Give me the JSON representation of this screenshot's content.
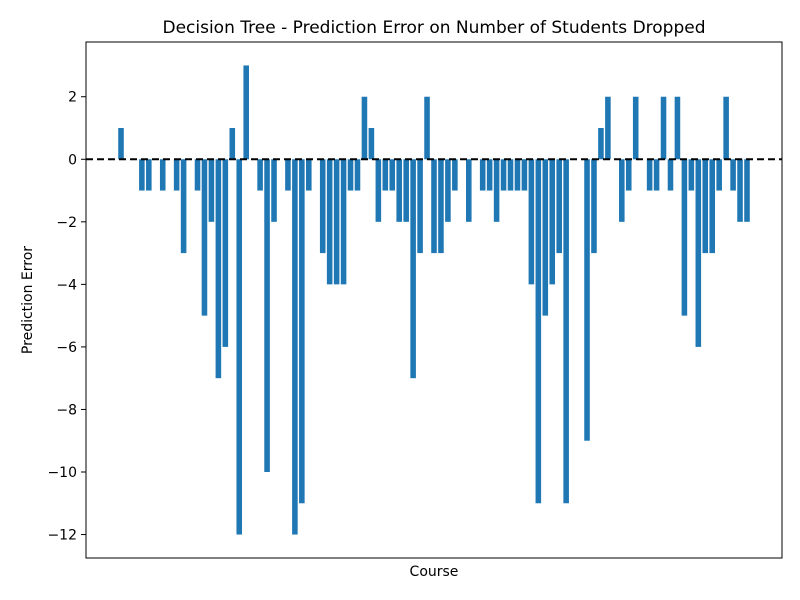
{
  "chart_data": {
    "type": "bar",
    "title": "Decision Tree - Prediction Error on Number of Students Dropped",
    "xlabel": "Course",
    "ylabel": "Prediction Error",
    "ylim": [
      -12.75,
      3.75
    ],
    "yticks": [
      2,
      0,
      -2,
      -4,
      -6,
      -8,
      -10,
      -12
    ],
    "ytick_labels": [
      "2",
      "0",
      "−2",
      "−4",
      "−6",
      "−8",
      "−10",
      "−12"
    ],
    "reference_line": {
      "y": 0,
      "style": "dashed",
      "color": "#000000"
    },
    "bar_color": "#1f77b4",
    "values": [
      1,
      0,
      0,
      -1,
      -1,
      0,
      -1,
      0,
      -1,
      -3,
      0,
      -1,
      -5,
      -2,
      -7,
      -6,
      1,
      -12,
      3,
      0,
      -1,
      -10,
      -2,
      0,
      -1,
      -12,
      -11,
      -1,
      0,
      -3,
      -4,
      -4,
      -4,
      -1,
      -1,
      2,
      1,
      -2,
      -1,
      -1,
      -2,
      -2,
      -7,
      -3,
      2,
      -3,
      -3,
      -2,
      -1,
      0,
      -2,
      0,
      -1,
      -1,
      -2,
      -1,
      -1,
      -1,
      -1,
      -4,
      -11,
      -5,
      -4,
      -3,
      -11,
      0,
      0,
      -9,
      -3,
      1,
      2,
      0,
      -2,
      -1,
      2,
      0,
      -1,
      -1,
      2,
      -1,
      2,
      -5,
      -1,
      -6,
      -3,
      -3,
      -1,
      2,
      -1,
      -2,
      -2
    ]
  }
}
